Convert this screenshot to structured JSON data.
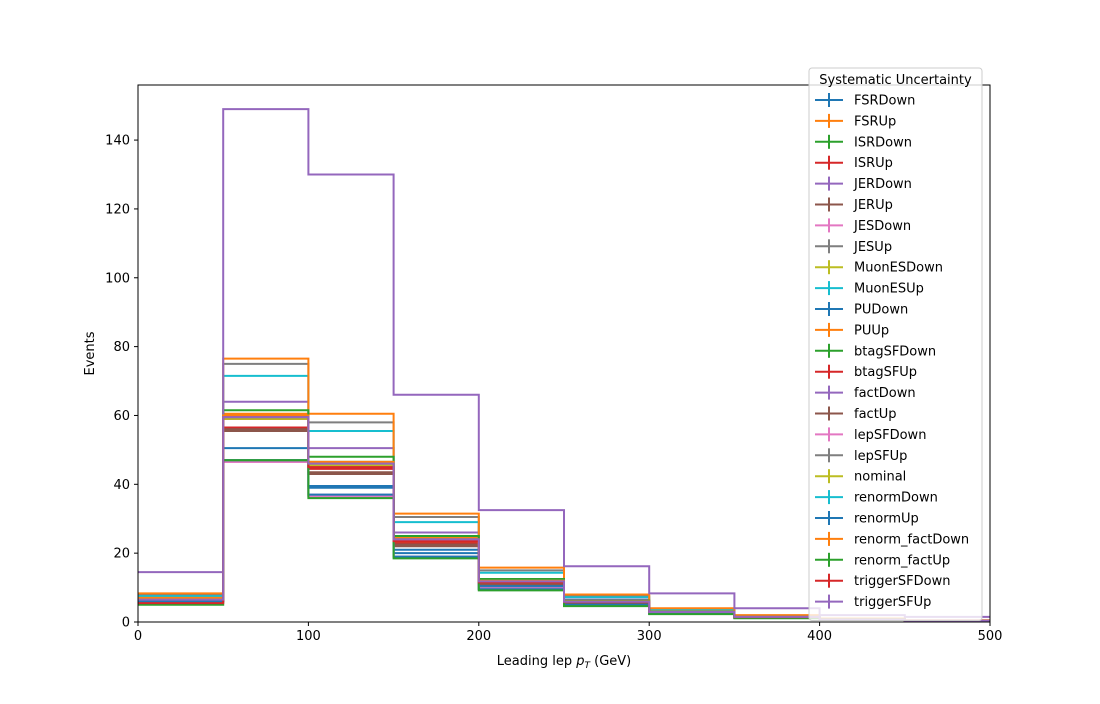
{
  "chart_data": {
    "type": "line",
    "drawstyle": "steps-post",
    "xlabel_prefix": "Leading lep ",
    "xlabel_symbol": "p",
    "xlabel_subscript": "T",
    "xlabel_suffix": " (GeV)",
    "ylabel": "Events",
    "xlim": [
      0,
      500
    ],
    "ylim": [
      0,
      156
    ],
    "xticks": [
      0,
      100,
      200,
      300,
      400,
      500
    ],
    "yticks": [
      0,
      20,
      40,
      60,
      80,
      100,
      120,
      140
    ],
    "grid": false,
    "legend_title": "Systematic Uncertainty",
    "legend_position": "upper right",
    "bin_edges": [
      0,
      50,
      100,
      150,
      200,
      250,
      300,
      350,
      400,
      450,
      500
    ],
    "series": [
      {
        "name": "FSRDown",
        "color": "#1f77b4",
        "values": [
          6.0,
          47.0,
          39.0,
          20.0,
          10.0,
          5.0,
          2.5,
          1.3,
          0.6,
          0.3
        ]
      },
      {
        "name": "FSRUp",
        "color": "#ff7f0e",
        "values": [
          7.5,
          60.5,
          46.5,
          24.5,
          12.0,
          6.0,
          3.0,
          1.5,
          0.8,
          0.4
        ]
      },
      {
        "name": "ISRDown",
        "color": "#2ca02c",
        "values": [
          6.0,
          47.0,
          36.5,
          19.0,
          9.5,
          4.8,
          2.4,
          1.2,
          0.6,
          0.3
        ]
      },
      {
        "name": "ISRUp",
        "color": "#d62728",
        "values": [
          6.5,
          56.5,
          44.5,
          23.0,
          11.5,
          5.8,
          2.9,
          1.4,
          0.7,
          0.35
        ]
      },
      {
        "name": "JERDown",
        "color": "#9467bd",
        "values": [
          7.0,
          64.0,
          50.5,
          26.0,
          12.5,
          6.5,
          3.2,
          1.6,
          0.8,
          0.4
        ]
      },
      {
        "name": "JERUp",
        "color": "#8c564b",
        "values": [
          6.3,
          55.5,
          43.0,
          22.0,
          11.0,
          5.5,
          2.7,
          1.4,
          0.7,
          0.35
        ]
      },
      {
        "name": "JESDown",
        "color": "#e377c2",
        "values": [
          6.0,
          46.5,
          37.0,
          19.0,
          9.8,
          4.9,
          2.4,
          1.2,
          0.6,
          0.3
        ]
      },
      {
        "name": "JESUp",
        "color": "#7f7f7f",
        "values": [
          8.0,
          75.0,
          58.0,
          30.5,
          15.0,
          7.5,
          3.7,
          1.8,
          0.9,
          0.45
        ]
      },
      {
        "name": "MuonESDown",
        "color": "#bcbd22",
        "values": [
          6.8,
          60.0,
          46.0,
          24.0,
          11.8,
          6.0,
          3.0,
          1.5,
          0.7,
          0.35
        ]
      },
      {
        "name": "MuonESUp",
        "color": "#17becf",
        "values": [
          7.5,
          71.5,
          55.5,
          29.0,
          14.3,
          7.2,
          3.5,
          1.8,
          0.9,
          0.45
        ]
      },
      {
        "name": "PUDown",
        "color": "#1f77b4",
        "values": [
          6.3,
          50.5,
          39.5,
          21.0,
          10.5,
          5.2,
          2.6,
          1.3,
          0.6,
          0.3
        ]
      },
      {
        "name": "PUUp",
        "color": "#ff7f0e",
        "values": [
          8.3,
          76.5,
          60.5,
          31.5,
          15.8,
          8.0,
          4.0,
          2.0,
          1.0,
          0.5
        ]
      },
      {
        "name": "btagSFDown",
        "color": "#2ca02c",
        "values": [
          6.8,
          61.5,
          48.0,
          25.0,
          12.5,
          6.2,
          3.1,
          1.5,
          0.8,
          0.4
        ]
      },
      {
        "name": "btagSFUp",
        "color": "#d62728",
        "values": [
          6.5,
          59.0,
          45.5,
          24.0,
          11.8,
          5.9,
          2.9,
          1.5,
          0.7,
          0.35
        ]
      },
      {
        "name": "factDown",
        "color": "#9467bd",
        "values": [
          14.5,
          149.0,
          130.0,
          66.0,
          32.5,
          16.2,
          8.3,
          4.0,
          2.0,
          1.5
        ]
      },
      {
        "name": "factUp",
        "color": "#8c564b",
        "values": [
          6.2,
          56.0,
          43.5,
          22.5,
          11.0,
          5.6,
          2.8,
          1.4,
          0.7,
          0.35
        ]
      },
      {
        "name": "lepSFDown",
        "color": "#e377c2",
        "values": [
          6.0,
          46.5,
          36.5,
          19.0,
          9.5,
          4.8,
          2.4,
          1.2,
          0.6,
          0.3
        ]
      },
      {
        "name": "lepSFUp",
        "color": "#7f7f7f",
        "values": [
          6.5,
          59.5,
          46.0,
          24.0,
          11.8,
          5.9,
          2.9,
          1.5,
          0.7,
          0.35
        ]
      },
      {
        "name": "nominal",
        "color": "#bcbd22",
        "values": [
          6.4,
          59.0,
          45.5,
          23.5,
          11.6,
          5.8,
          2.9,
          1.4,
          0.7,
          0.35
        ]
      },
      {
        "name": "renormDown",
        "color": "#17becf",
        "values": [
          6.8,
          59.5,
          46.5,
          24.0,
          12.0,
          6.0,
          3.0,
          1.5,
          0.7,
          0.35
        ]
      },
      {
        "name": "renormUp",
        "color": "#1f77b4",
        "values": [
          6.0,
          47.0,
          37.0,
          19.0,
          9.5,
          4.8,
          2.4,
          1.2,
          0.6,
          0.3
        ]
      },
      {
        "name": "renorm_factDown",
        "color": "#ff7f0e",
        "values": [
          7.0,
          60.0,
          46.5,
          24.0,
          12.0,
          6.0,
          3.0,
          1.5,
          0.7,
          0.35
        ]
      },
      {
        "name": "renorm_factUp",
        "color": "#2ca02c",
        "values": [
          5.0,
          47.0,
          36.0,
          18.5,
          9.2,
          4.6,
          2.3,
          1.1,
          0.6,
          0.3
        ]
      },
      {
        "name": "triggerSFDown",
        "color": "#d62728",
        "values": [
          5.5,
          59.5,
          45.0,
          23.5,
          11.5,
          5.8,
          2.9,
          1.4,
          0.7,
          0.35
        ]
      },
      {
        "name": "triggerSFUp",
        "color": "#9467bd",
        "values": [
          6.5,
          59.5,
          46.0,
          24.0,
          11.8,
          5.9,
          2.9,
          1.5,
          0.7,
          0.35
        ]
      }
    ]
  }
}
